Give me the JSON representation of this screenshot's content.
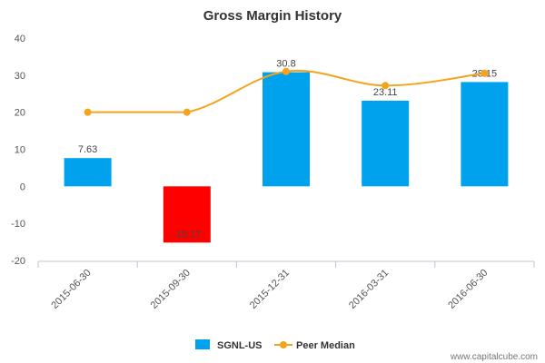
{
  "chart_data": {
    "type": "bar",
    "title": "Gross Margin History",
    "categories": [
      "2015-06-30",
      "2015-09-30",
      "2015-12-31",
      "2016-03-31",
      "2016-06-30"
    ],
    "series": [
      {
        "name": "SGNL-US",
        "type": "bar",
        "values": [
          7.63,
          -15.17,
          30.8,
          23.11,
          28.15
        ],
        "labels": [
          "7.63",
          "-15.17",
          "30.8",
          "23.11",
          "28.15"
        ],
        "color": "#00a2ed",
        "negative_color": "#ff0000"
      },
      {
        "name": "Peer Median",
        "type": "line",
        "values": [
          20,
          20,
          31,
          27.2,
          30.5
        ],
        "color": "#f5a31a"
      }
    ],
    "yticks": [
      "-20",
      "-10",
      "0",
      "10",
      "20",
      "30",
      "40"
    ],
    "ylim": [
      -20,
      40
    ],
    "grid": false,
    "legend_position": "bottom-center"
  },
  "credit": "www.capitalcube.com"
}
